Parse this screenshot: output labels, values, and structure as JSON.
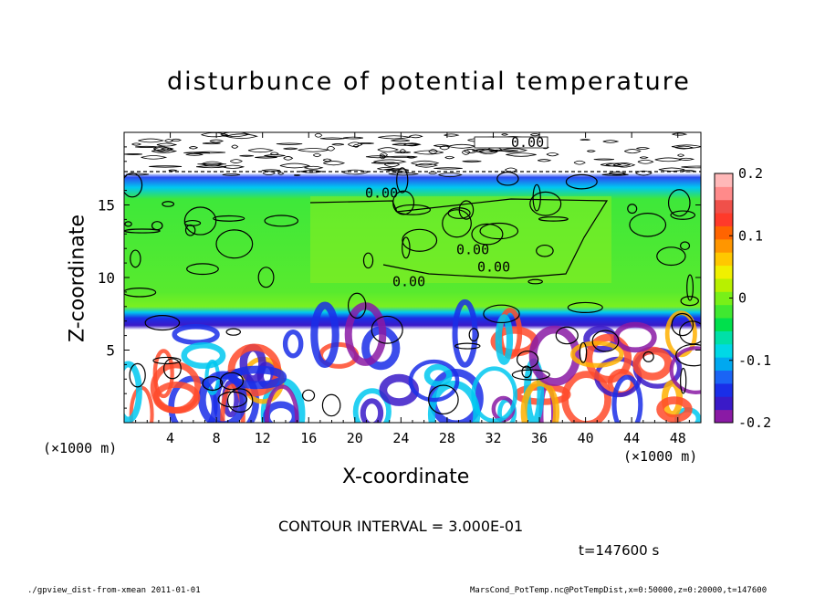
{
  "chart_data": {
    "type": "heatmap",
    "title": "disturbunce of potential temperature",
    "xlabel": "X-coordinate",
    "ylabel": "Z-coordinate",
    "x_unit_label": "(×1000 m)",
    "xlim": [
      0,
      50
    ],
    "ylim": [
      0,
      20
    ],
    "x_ticks": [
      4,
      8,
      12,
      16,
      20,
      24,
      28,
      32,
      36,
      40,
      44,
      48
    ],
    "y_ticks": [
      5,
      10,
      15
    ],
    "colorbar": {
      "range": [
        -0.2,
        0.2
      ],
      "ticks": [
        "0.2",
        "0.1",
        "0",
        "-0.1",
        "-0.2"
      ],
      "tick_values": [
        0.2,
        0.1,
        0,
        -0.1,
        -0.2
      ],
      "colors": [
        "#8a1aa5",
        "#3a1ac8",
        "#1a2ee8",
        "#1a64f5",
        "#00a8f0",
        "#00d8e6",
        "#00e0a8",
        "#00e04c",
        "#40e830",
        "#78f018",
        "#b8f000",
        "#f0f000",
        "#ffc800",
        "#ff9600",
        "#ff6400",
        "#ff3a2a",
        "#f0504a",
        "#ff8a8a",
        "#ffb8b8"
      ]
    },
    "contour_labels": [
      "0.00",
      "0.00",
      "0.00",
      "0.00",
      "0.00"
    ],
    "grid": false,
    "legend": "right (colorbar)"
  },
  "annotations": {
    "contour_interval": "CONTOUR INTERVAL = 3.000E-01",
    "time": "t=147600 s",
    "footer_left": "./gpview_dist-from-xmean  2011-01-01",
    "footer_right": "MarsCond_PotTemp.nc@PotTempDist,x=0:50000,z=0:20000,t=147600"
  }
}
